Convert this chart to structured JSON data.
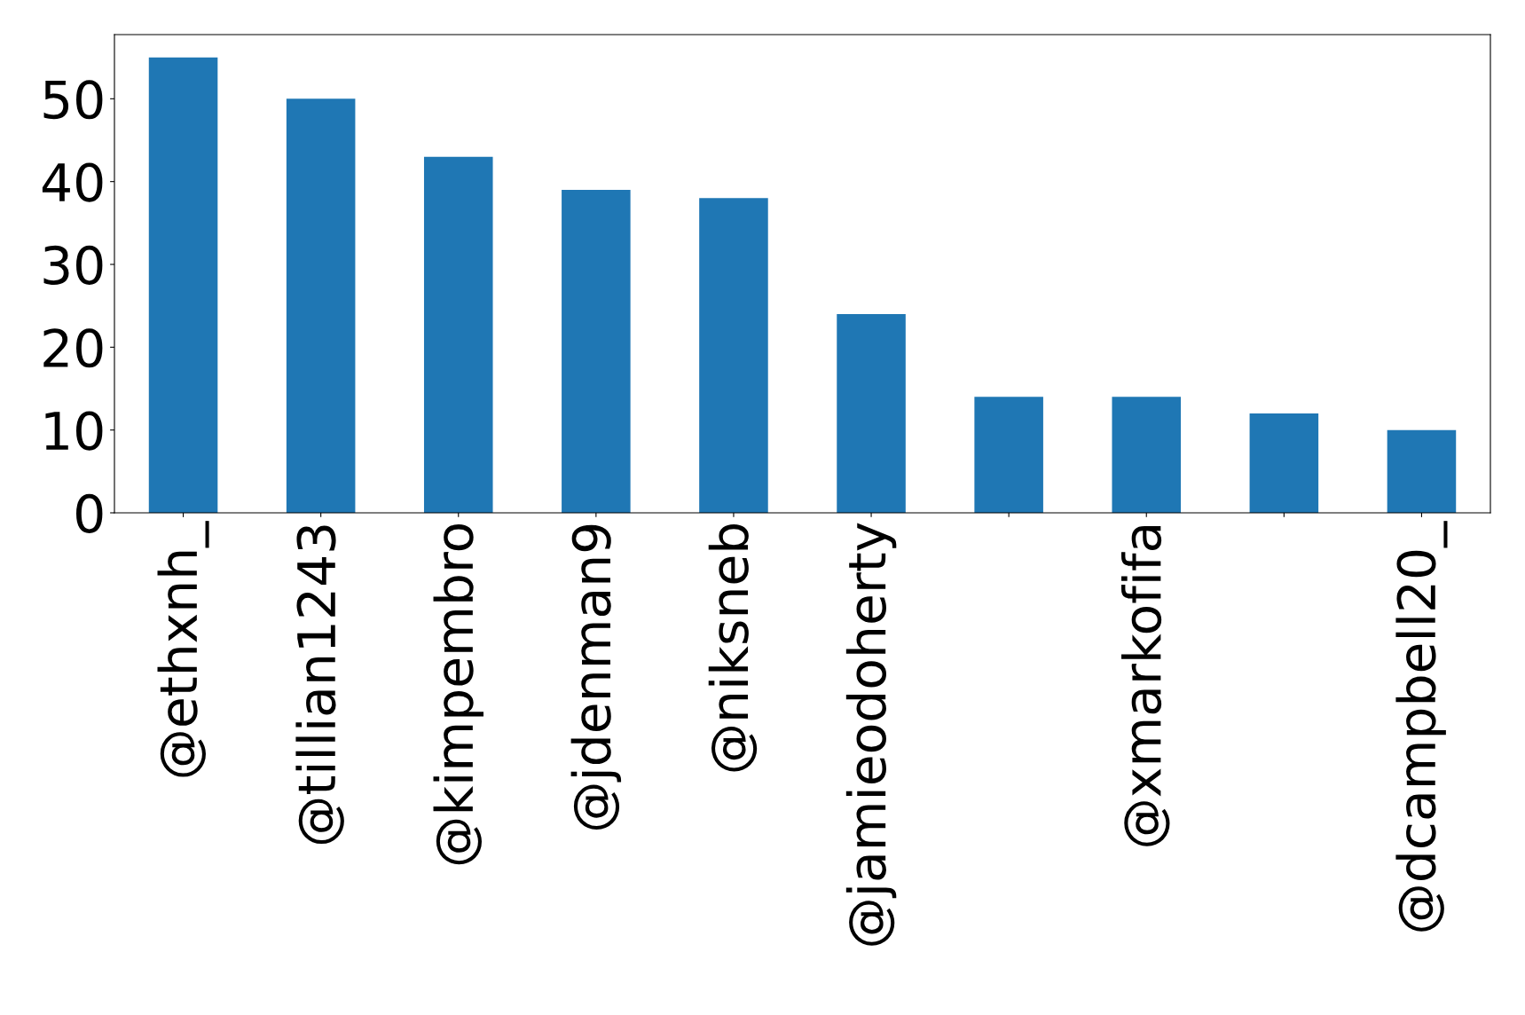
{
  "chart_data": {
    "type": "bar",
    "categories": [
      "@ethxnh_",
      "@tillian1243",
      "@kimpembro",
      "@jdenman9",
      "@niksneb",
      "@jamieodoherty",
      null,
      "@xmarkofifa",
      null,
      "@dcampbell20_"
    ],
    "values": [
      55,
      50,
      43,
      39,
      38,
      24,
      14,
      14,
      12,
      10
    ],
    "color": "#1f77b4",
    "ylim": [
      0,
      57.75
    ],
    "yticks": [
      0,
      10,
      20,
      30,
      40,
      50
    ],
    "grid": false,
    "legend": false
  }
}
